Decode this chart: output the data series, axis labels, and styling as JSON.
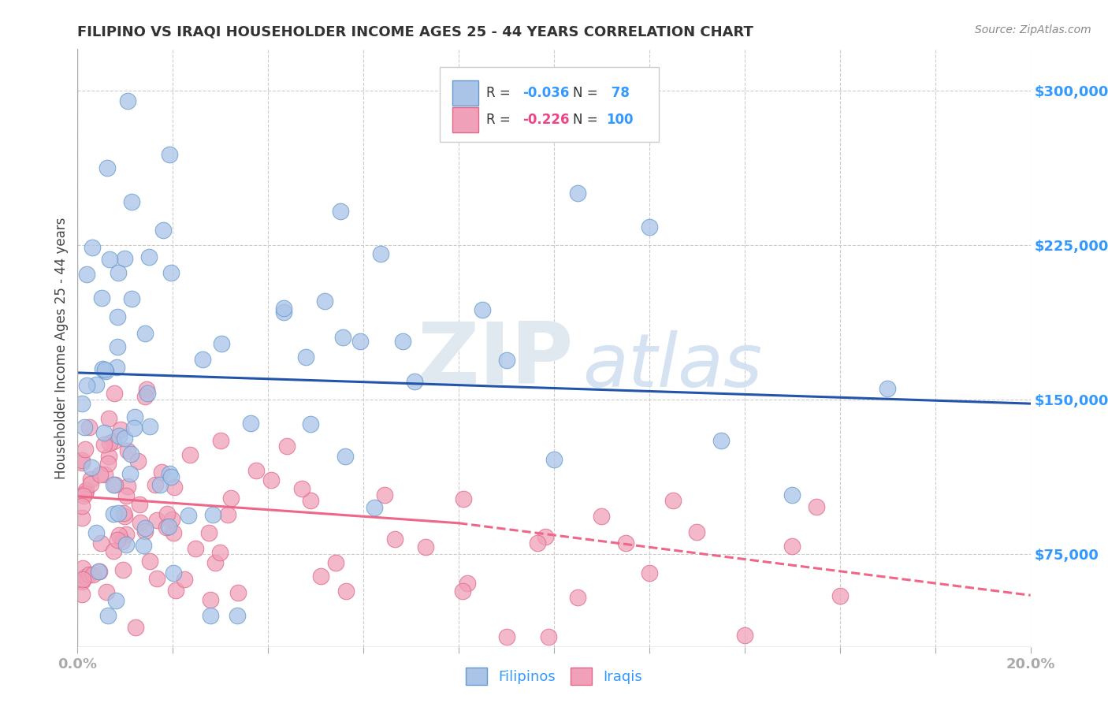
{
  "title": "FILIPINO VS IRAQI HOUSEHOLDER INCOME AGES 25 - 44 YEARS CORRELATION CHART",
  "source": "Source: ZipAtlas.com",
  "ylabel": "Householder Income Ages 25 - 44 years",
  "xlim": [
    0.0,
    0.2
  ],
  "ylim": [
    30000,
    320000
  ],
  "ytick_labels": [
    "$75,000",
    "$150,000",
    "$225,000",
    "$300,000"
  ],
  "ytick_values": [
    75000,
    150000,
    225000,
    300000
  ],
  "xtick_labels": [
    "0.0%",
    "",
    "",
    "",
    "",
    "",
    "",
    "",
    "",
    "",
    "20.0%"
  ],
  "xtick_values": [
    0.0,
    0.02,
    0.04,
    0.06,
    0.08,
    0.1,
    0.12,
    0.14,
    0.16,
    0.18,
    0.2
  ],
  "filipino_color": "#aac4e8",
  "iraqi_color": "#f0a0b8",
  "filipino_edge": "#6699cc",
  "iraqi_edge": "#e06888",
  "trend_filipino_color": "#2255aa",
  "trend_iraqi_color": "#ee6688",
  "legend_r_filipino": "-0.036",
  "legend_n_filipino": "78",
  "legend_r_iraqi": "-0.226",
  "legend_n_iraqi": "100",
  "fil_trend_x0": 0.0,
  "fil_trend_y0": 163000,
  "fil_trend_x1": 0.2,
  "fil_trend_y1": 148000,
  "irq_trend_solid_x0": 0.0,
  "irq_trend_solid_y0": 103000,
  "irq_trend_solid_x1": 0.08,
  "irq_trend_solid_y1": 90000,
  "irq_trend_dash_x0": 0.08,
  "irq_trend_dash_y0": 90000,
  "irq_trend_dash_x1": 0.2,
  "irq_trend_dash_y1": 55000
}
